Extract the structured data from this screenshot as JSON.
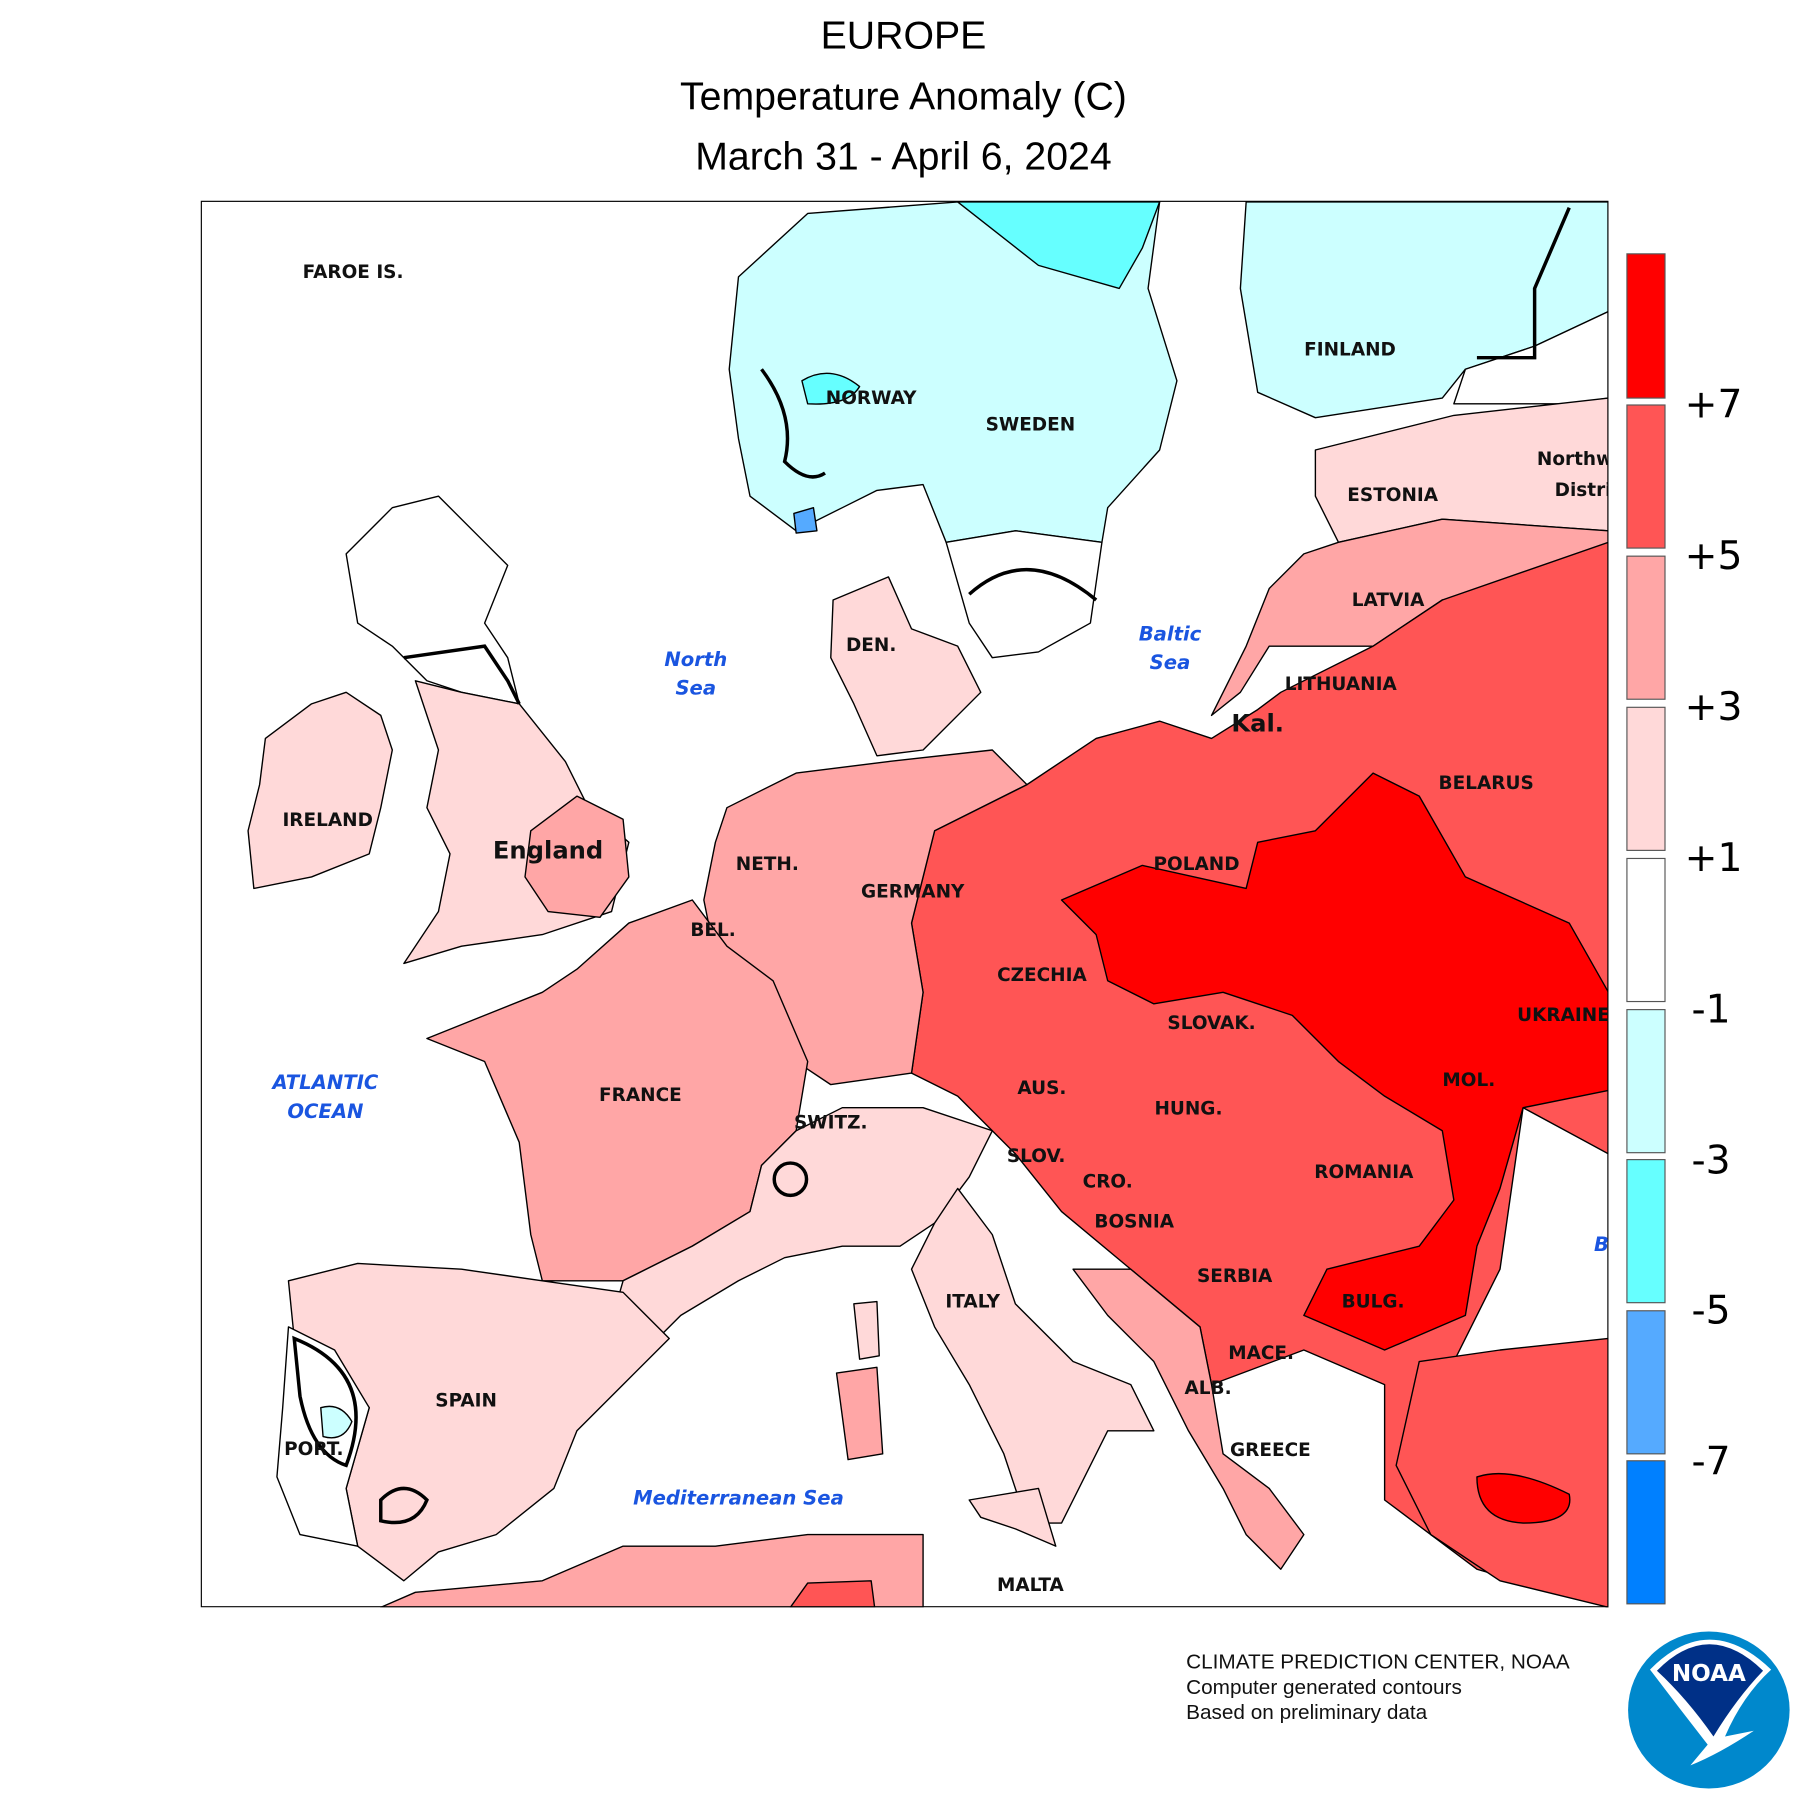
{
  "title": {
    "line1": "EUROPE",
    "line2": "Temperature Anomaly (C)",
    "line3": "March 31 - April 6, 2024"
  },
  "legend": {
    "bins": [
      {
        "color": "#ff0000"
      },
      {
        "color": "#ff5555"
      },
      {
        "color": "#ffa6a6"
      },
      {
        "color": "#ffd9d9"
      },
      {
        "color": "#ffffff"
      },
      {
        "color": "#ccffff"
      },
      {
        "color": "#66ffff"
      },
      {
        "color": "#55aaff"
      },
      {
        "color": "#0080ff"
      }
    ],
    "labels": [
      "+7",
      "+5",
      "+3",
      "+1",
      "-1",
      "-3",
      "-5",
      "-7"
    ]
  },
  "map": {
    "labels": {
      "faroe": "FAROE IS.",
      "norway": "NORWAY",
      "sweden": "SWEDEN",
      "finland": "FINLAND",
      "estonia": "ESTONIA",
      "northwest": "Northw",
      "district": "Distri",
      "latvia": "LATVIA",
      "denmark": "DEN.",
      "lithuania": "LITHUANIA",
      "kal": "Kal.",
      "belarus": "BELARUS",
      "ireland": "IRELAND",
      "england": "England",
      "netherlands": "NETH.",
      "germany": "GERMANY",
      "poland": "POLAND",
      "belgium": "BEL.",
      "czechia": "CZECHIA",
      "slovakia": "SLOVAK.",
      "ukraine": "UKRAINE",
      "france": "FRANCE",
      "austria": "AUS.",
      "moldova": "MOL.",
      "hungary": "HUNG.",
      "switzerland": "SWITZ.",
      "slovenia": "SLOV.",
      "romania": "ROMANIA",
      "croatia": "CRO.",
      "bosnia": "BOSNIA",
      "serbia": "SERBIA",
      "italy": "ITALY",
      "bulgaria": "BULG.",
      "macedonia": "MACE.",
      "albania": "ALB.",
      "spain": "SPAIN",
      "portugal": "PORT.",
      "greece": "GREECE",
      "malta": "MALTA"
    },
    "seas": {
      "north_sea": [
        "North",
        "Sea"
      ],
      "baltic_sea": [
        "Baltic",
        "Sea"
      ],
      "atlantic": [
        "ATLANTIC",
        "OCEAN"
      ],
      "mediterranean": "Mediterranean Sea",
      "black_sea": "B"
    }
  },
  "footer": {
    "line1": "CLIMATE PREDICTION CENTER, NOAA",
    "line2": "Computer generated contours",
    "line3": "Based on preliminary data"
  },
  "logo": {
    "text": "NOAA"
  }
}
